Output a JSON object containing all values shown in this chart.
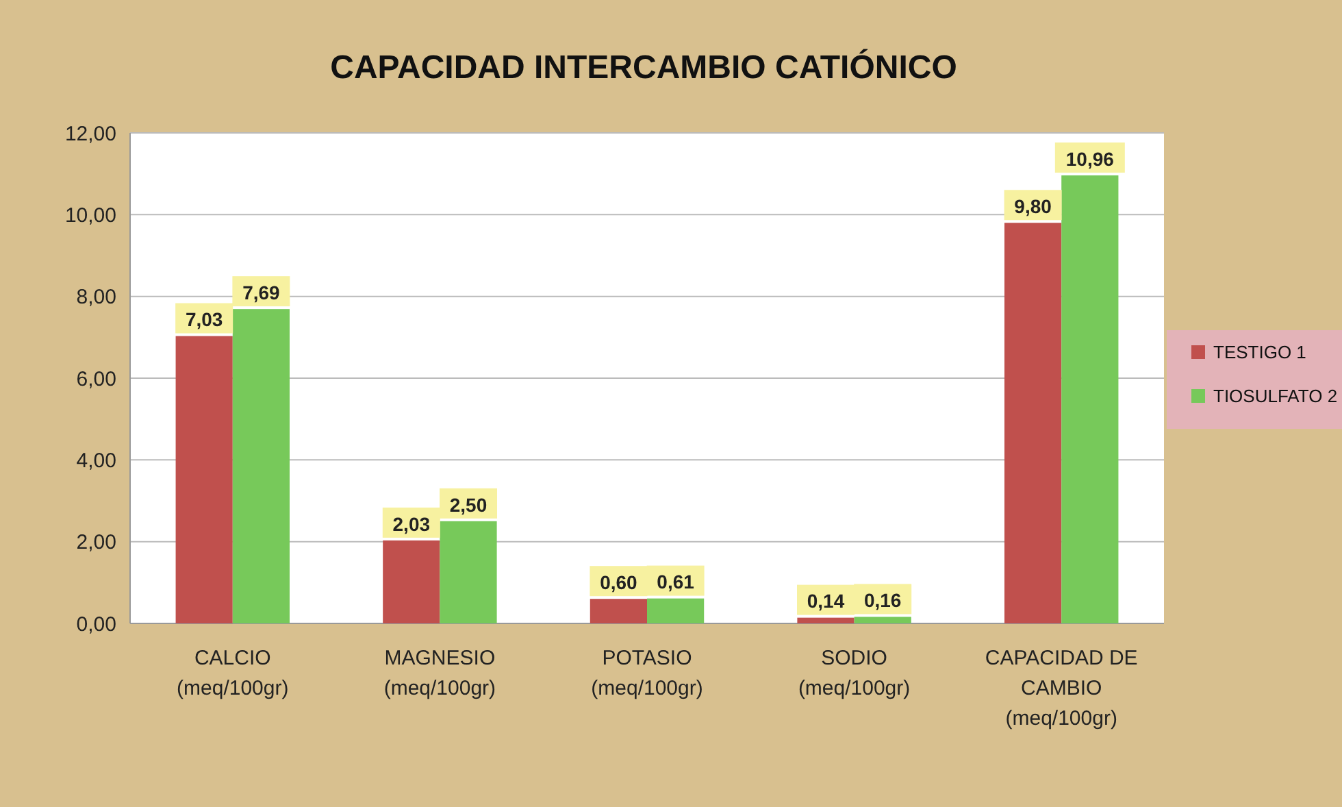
{
  "chart_data": {
    "type": "bar",
    "title": "CAPACIDAD INTERCAMBIO CATIÓNICO",
    "categories": [
      "CALCIO\n(meq/100gr)",
      "MAGNESIO\n(meq/100gr)",
      "POTASIO\n(meq/100gr)",
      "SODIO\n(meq/100gr)",
      "CAPACIDAD DE\nCAMBIO\n(meq/100gr)"
    ],
    "series": [
      {
        "name": "TESTIGO 1",
        "color": "#c0504d",
        "values": [
          7.03,
          2.03,
          0.6,
          0.14,
          9.8
        ],
        "value_labels": [
          "7,03",
          "2,03",
          "0,60",
          "0,14",
          "9,80"
        ]
      },
      {
        "name": "TIOSULFATO 2",
        "color": "#77c95a",
        "values": [
          7.69,
          2.5,
          0.61,
          0.16,
          10.96
        ],
        "value_labels": [
          "7,69",
          "2,50",
          "0,61",
          "0,16",
          "10,96"
        ]
      }
    ],
    "ylim": [
      0,
      12
    ],
    "yticks": [
      {
        "value": 0,
        "label": "0,00"
      },
      {
        "value": 2,
        "label": "2,00"
      },
      {
        "value": 4,
        "label": "4,00"
      },
      {
        "value": 6,
        "label": "6,00"
      },
      {
        "value": 8,
        "label": "8,00"
      },
      {
        "value": 10,
        "label": "10,00"
      },
      {
        "value": 12,
        "label": "12,00"
      }
    ],
    "grid": "y",
    "legend": "right"
  }
}
